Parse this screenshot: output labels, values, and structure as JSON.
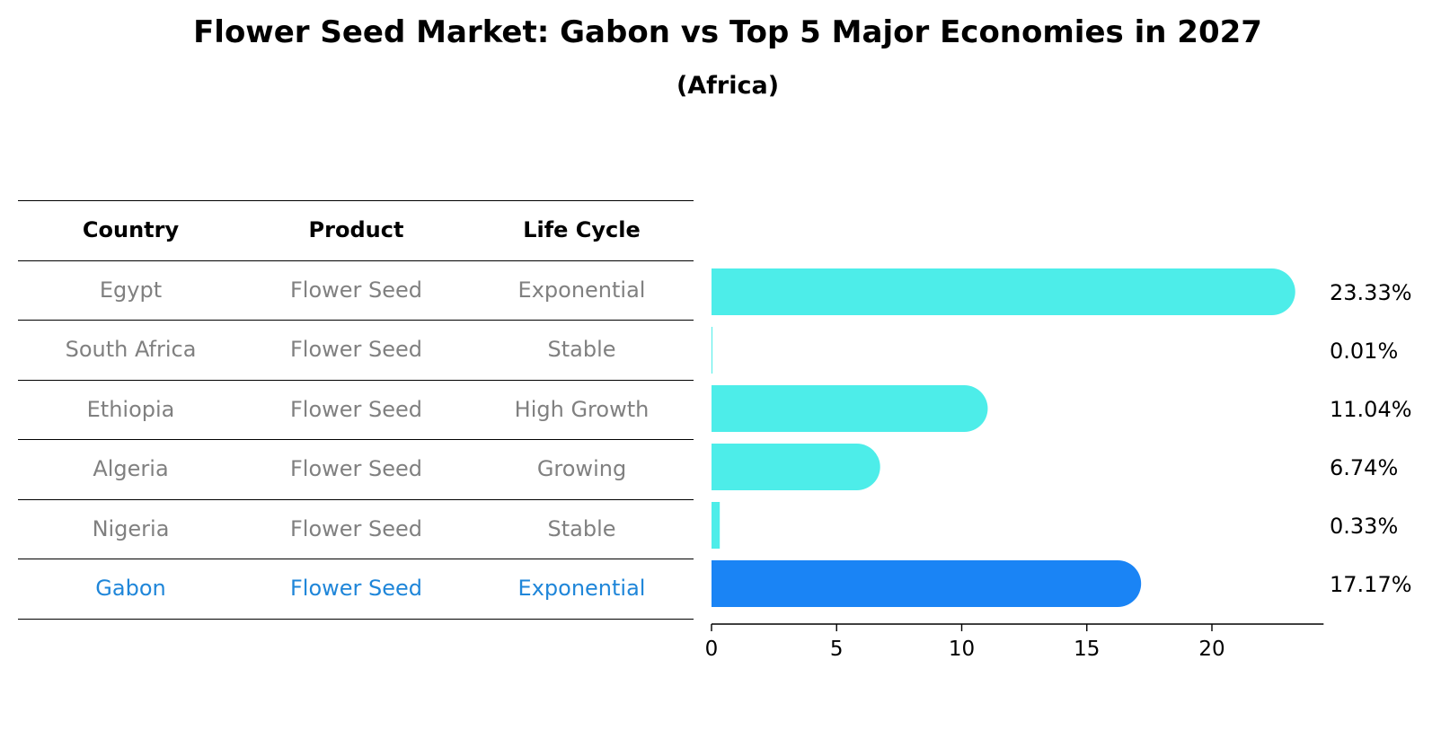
{
  "title": "Flower Seed Market: Gabon vs Top 5 Major Economies in 2027",
  "subtitle": "(Africa)",
  "table": {
    "headers": [
      "Country",
      "Product",
      "Life Cycle"
    ],
    "rows": [
      [
        "Egypt",
        "Flower Seed",
        "Exponential"
      ],
      [
        "South Africa",
        "Flower Seed",
        "Stable"
      ],
      [
        "Ethiopia",
        "Flower Seed",
        "High Growth"
      ],
      [
        "Algeria",
        "Flower Seed",
        "Growing"
      ],
      [
        "Nigeria",
        "Flower Seed",
        "Stable"
      ],
      [
        "Gabon",
        "Flower Seed",
        "Exponential"
      ]
    ],
    "highlight_row": 5
  },
  "colors": {
    "bar": "#4dede9",
    "highlight_bar": "#1a84f5",
    "muted_text": "#808080",
    "highlight_text": "#1f86d9"
  },
  "chart_data": {
    "type": "bar",
    "orientation": "horizontal",
    "categories": [
      "Egypt",
      "South Africa",
      "Ethiopia",
      "Algeria",
      "Nigeria",
      "Gabon"
    ],
    "values": [
      23.33,
      0.01,
      11.04,
      6.74,
      0.33,
      17.17
    ],
    "value_labels": [
      "23.33%",
      "0.01%",
      "11.04%",
      "6.74%",
      "0.33%",
      "17.17%"
    ],
    "highlight": "Gabon",
    "xlim": [
      0,
      24.5
    ],
    "xticks": [
      0,
      5,
      10,
      15,
      20
    ],
    "xtick_labels": [
      "0",
      "5",
      "10",
      "15",
      "20"
    ],
    "xlabel": "",
    "ylabel": "",
    "grid": false
  }
}
